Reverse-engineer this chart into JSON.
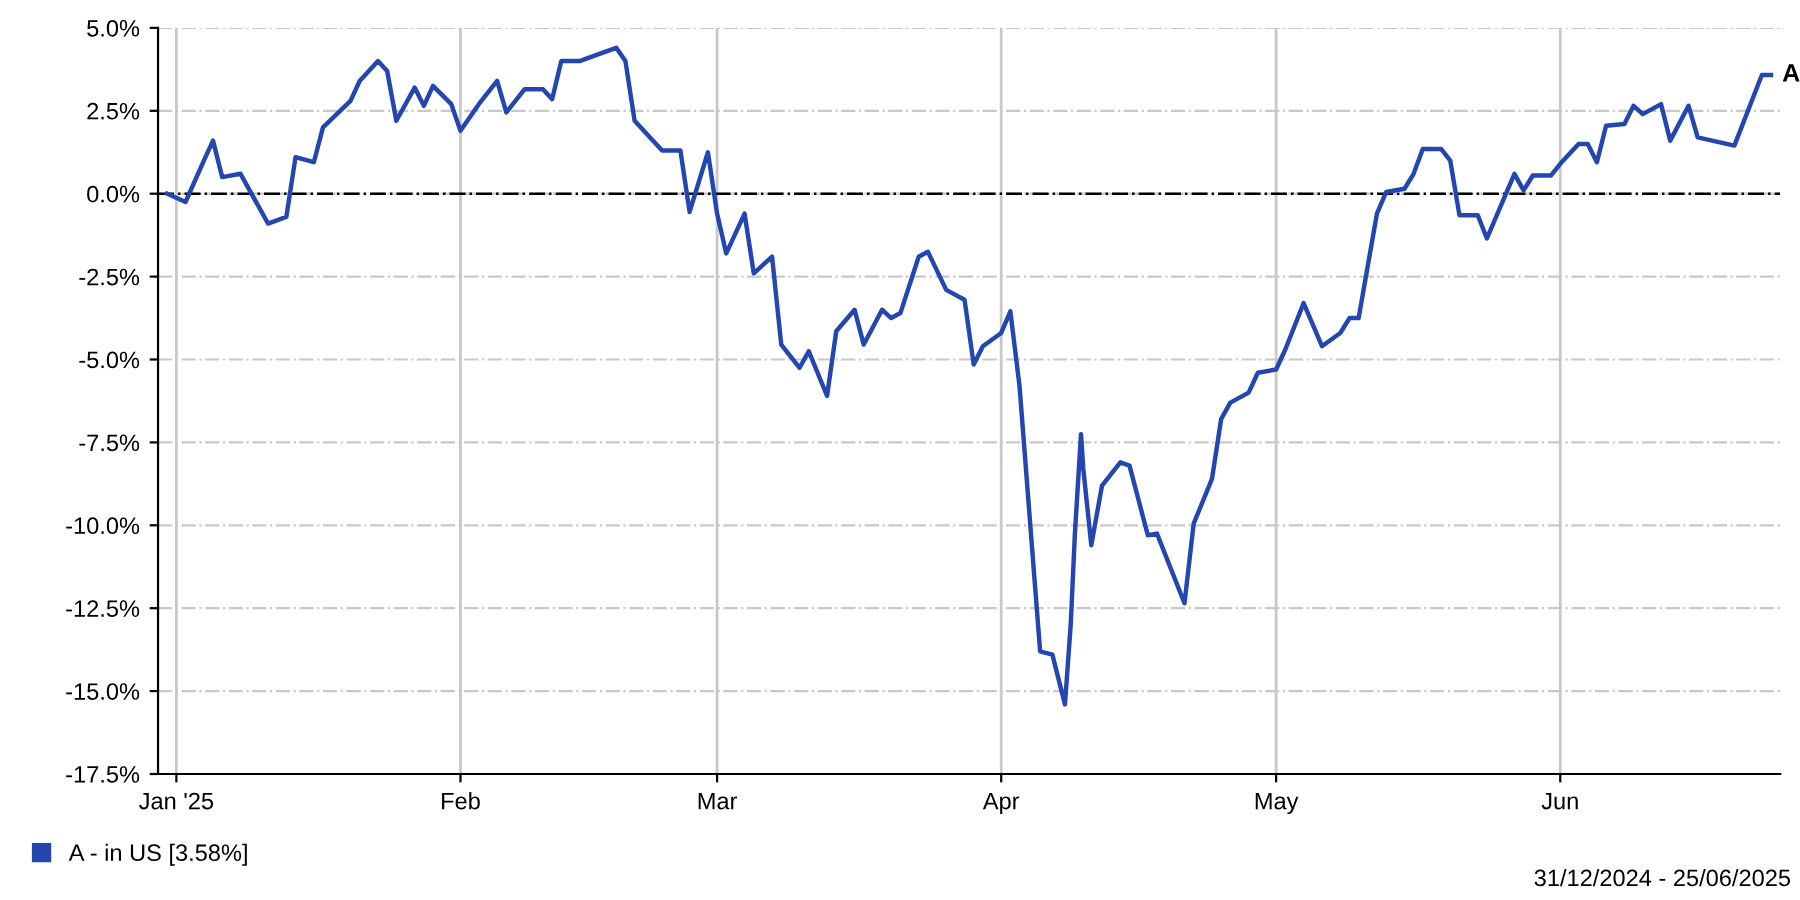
{
  "chart_data": {
    "type": "line",
    "x": [
      "2024-12-31",
      "2025-01-02",
      "2025-01-04",
      "2025-01-05",
      "2025-01-06",
      "2025-01-08",
      "2025-01-11",
      "2025-01-13",
      "2025-01-14",
      "2025-01-16",
      "2025-01-17",
      "2025-01-20",
      "2025-01-21",
      "2025-01-23",
      "2025-01-24",
      "2025-01-25",
      "2025-01-27",
      "2025-01-28",
      "2025-01-29",
      "2025-01-31",
      "2025-02-01",
      "2025-02-03",
      "2025-02-05",
      "2025-02-06",
      "2025-02-08",
      "2025-02-10",
      "2025-02-11",
      "2025-02-12",
      "2025-02-14",
      "2025-02-16",
      "2025-02-18",
      "2025-02-19",
      "2025-02-20",
      "2025-02-23",
      "2025-02-25",
      "2025-02-26",
      "2025-02-28",
      "2025-03-01",
      "2025-03-02",
      "2025-03-04",
      "2025-03-05",
      "2025-03-07",
      "2025-03-08",
      "2025-03-10",
      "2025-03-11",
      "2025-03-13",
      "2025-03-14",
      "2025-03-16",
      "2025-03-17",
      "2025-03-19",
      "2025-03-20",
      "2025-03-21",
      "2025-03-23",
      "2025-03-24",
      "2025-03-26",
      "2025-03-28",
      "2025-03-29",
      "2025-03-30",
      "2025-04-01",
      "2025-04-02",
      "2025-04-03",
      "2025-04-04T14:00",
      "2025-04-05T06:00",
      "2025-04-06T14:00",
      "2025-04-07T23:00",
      "2025-04-08T14:00",
      "2025-04-09T01:00",
      "2025-04-09T17:00",
      "2025-04-09T23:00",
      "2025-04-10T20:00",
      "2025-04-12",
      "2025-04-14",
      "2025-04-15",
      "2025-04-17",
      "2025-04-18",
      "2025-04-21",
      "2025-04-22",
      "2025-04-24",
      "2025-04-25",
      "2025-04-26",
      "2025-04-28",
      "2025-04-29",
      "2025-05-01",
      "2025-05-02",
      "2025-05-04",
      "2025-05-06",
      "2025-05-08",
      "2025-05-09",
      "2025-05-10",
      "2025-05-12",
      "2025-05-13",
      "2025-05-15",
      "2025-05-16",
      "2025-05-17",
      "2025-05-19",
      "2025-05-20",
      "2025-05-21",
      "2025-05-23",
      "2025-05-24",
      "2025-05-27",
      "2025-05-28",
      "2025-05-29",
      "2025-05-31",
      "2025-06-01",
      "2025-06-03",
      "2025-06-04",
      "2025-06-05",
      "2025-06-06",
      "2025-06-08",
      "2025-06-09",
      "2025-06-10",
      "2025-06-12",
      "2025-06-13",
      "2025-06-15",
      "2025-06-16",
      "2025-06-20",
      "2025-06-23",
      "2025-06-24"
    ],
    "series": [
      {
        "name": "A - in US [3.58%]",
        "color": "#2346b0",
        "values": [
          0.0,
          -0.25,
          1.0,
          1.6,
          0.5,
          0.6,
          -0.9,
          -0.7,
          1.1,
          0.95,
          2.0,
          2.8,
          3.4,
          4.0,
          3.7,
          2.2,
          3.2,
          2.65,
          3.25,
          2.7,
          1.9,
          2.7,
          3.4,
          2.45,
          3.15,
          3.15,
          2.85,
          4.0,
          4.0,
          4.2,
          4.4,
          4.0,
          2.2,
          1.3,
          1.3,
          -0.55,
          1.25,
          -0.6,
          -1.8,
          -0.6,
          -2.4,
          -1.9,
          -4.55,
          -5.25,
          -4.75,
          -6.1,
          -4.15,
          -3.5,
          -4.55,
          -3.5,
          -3.75,
          -3.6,
          -1.9,
          -1.75,
          -2.9,
          -3.2,
          -5.15,
          -4.6,
          -4.2,
          -3.55,
          -5.8,
          -11.45,
          -13.8,
          -13.9,
          -15.4,
          -13.0,
          -10.25,
          -7.25,
          -8.3,
          -10.6,
          -8.8,
          -8.1,
          -8.2,
          -10.3,
          -10.25,
          -12.35,
          -9.95,
          -8.6,
          -6.8,
          -6.3,
          -6.0,
          -5.4,
          -5.3,
          -4.7,
          -3.3,
          -4.6,
          -4.2,
          -3.75,
          -3.75,
          -0.6,
          0.05,
          0.15,
          0.6,
          1.35,
          1.35,
          1.0,
          -0.65,
          -0.65,
          -1.35,
          0.6,
          0.1,
          0.55,
          0.55,
          0.9,
          1.5,
          1.5,
          0.95,
          2.05,
          2.1,
          2.65,
          2.4,
          2.7,
          1.6,
          2.65,
          1.7,
          1.45,
          3.58,
          3.58
        ]
      }
    ],
    "xlim": [
      "2024-12-30",
      "2025-06-25"
    ],
    "xticks": [
      {
        "value": "2025-01-01",
        "label": "Jan '25"
      },
      {
        "value": "2025-02-01",
        "label": "Feb"
      },
      {
        "value": "2025-03-01",
        "label": "Mar"
      },
      {
        "value": "2025-04-01",
        "label": "Apr"
      },
      {
        "value": "2025-05-01",
        "label": "May"
      },
      {
        "value": "2025-06-01",
        "label": "Jun"
      }
    ],
    "ylim": [
      -17.5,
      5
    ],
    "yticks": [
      {
        "value": 5,
        "label": "5.0%"
      },
      {
        "value": 2.5,
        "label": "2.5%"
      },
      {
        "value": 0,
        "label": "0.0%"
      },
      {
        "value": -2.5,
        "label": "-2.5%"
      },
      {
        "value": -5,
        "label": "-5.0%"
      },
      {
        "value": -7.5,
        "label": "-7.5%"
      },
      {
        "value": -10,
        "label": "-10.0%"
      },
      {
        "value": -12.5,
        "label": "-12.5%"
      },
      {
        "value": -15,
        "label": "-15.0%"
      },
      {
        "value": -17.5,
        "label": "-17.5%"
      }
    ],
    "ref_lines": [
      {
        "axis": "y",
        "value": 0,
        "color": "#000000",
        "line_style": "dashed"
      }
    ],
    "annotations": [
      {
        "text": "A",
        "x": "2025-06-24",
        "y": 3.58
      },
      "31/12/2024 - 25/06/2025"
    ],
    "grid": true,
    "legend": "bottom left",
    "marker": "none",
    "line_style": "solid"
  }
}
